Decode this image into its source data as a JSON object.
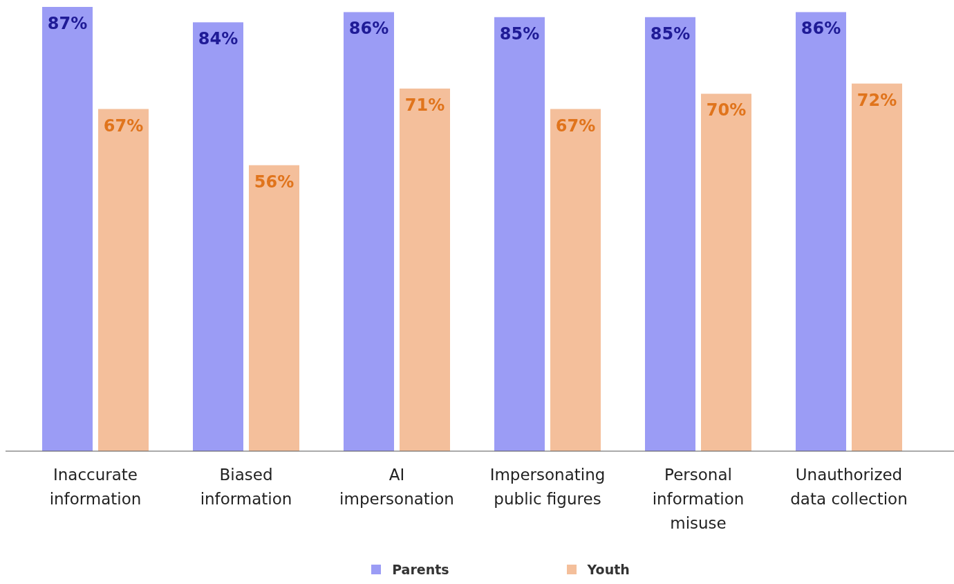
{
  "chart_data": {
    "type": "bar",
    "categories": [
      "Inaccurate information",
      "Biased information",
      "AI impersonation",
      "Impersonating public figures",
      "Personal information misuse",
      "Unauthorized data collection"
    ],
    "series": [
      {
        "name": "Parents",
        "color": "#9b9cf5",
        "values": [
          87,
          84,
          86,
          85,
          85,
          86
        ],
        "value_labels": [
          "87%",
          "84%",
          "86%",
          "85%",
          "85%",
          "86%"
        ]
      },
      {
        "name": "Youth",
        "color": "#f4bf9b",
        "values": [
          67,
          56,
          71,
          67,
          70,
          72
        ],
        "value_labels": [
          "67%",
          "56%",
          "71%",
          "67%",
          "70%",
          "72%"
        ]
      }
    ],
    "legend": "bottom",
    "grid": false
  }
}
